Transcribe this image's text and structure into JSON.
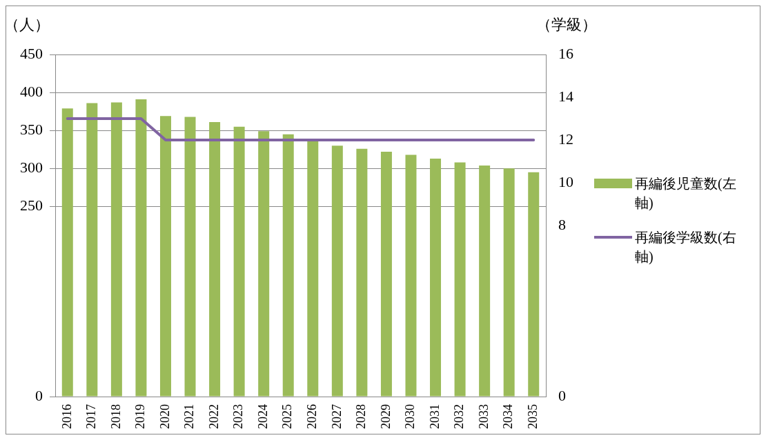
{
  "chart_data": {
    "type": "bar",
    "ylabel": "（人）",
    "y2label": "（学級）",
    "categories": [
      "2016",
      "2017",
      "2018",
      "2019",
      "2020",
      "2021",
      "2022",
      "2023",
      "2024",
      "2025",
      "2026",
      "2027",
      "2028",
      "2029",
      "2030",
      "2031",
      "2032",
      "2033",
      "2034",
      "2035"
    ],
    "series": [
      {
        "name": "再編後児童数(左軸)",
        "color": "#9bbb59",
        "values": [
          379,
          386,
          387,
          391,
          369,
          368,
          361,
          355,
          349,
          345,
          337,
          330,
          326,
          322,
          318,
          313,
          308,
          304,
          300,
          295
        ]
      },
      {
        "name": "再編後学級数(右軸)",
        "type": "line",
        "axis": "y2",
        "color": "#8064a2",
        "values": [
          13,
          13,
          13,
          13,
          12,
          12,
          12,
          12,
          12,
          12,
          12,
          12,
          12,
          12,
          12,
          12,
          12,
          12,
          12,
          12
        ]
      }
    ],
    "ylim": [
      0,
      450
    ],
    "yticks": [
      0,
      250,
      300,
      350,
      400,
      450
    ],
    "y2lim": [
      0,
      16
    ],
    "y2ticks": [
      0,
      8,
      10,
      12,
      14,
      16
    ],
    "grid": "y",
    "legend": "right",
    "marker": "none",
    "line_style": "solid"
  }
}
